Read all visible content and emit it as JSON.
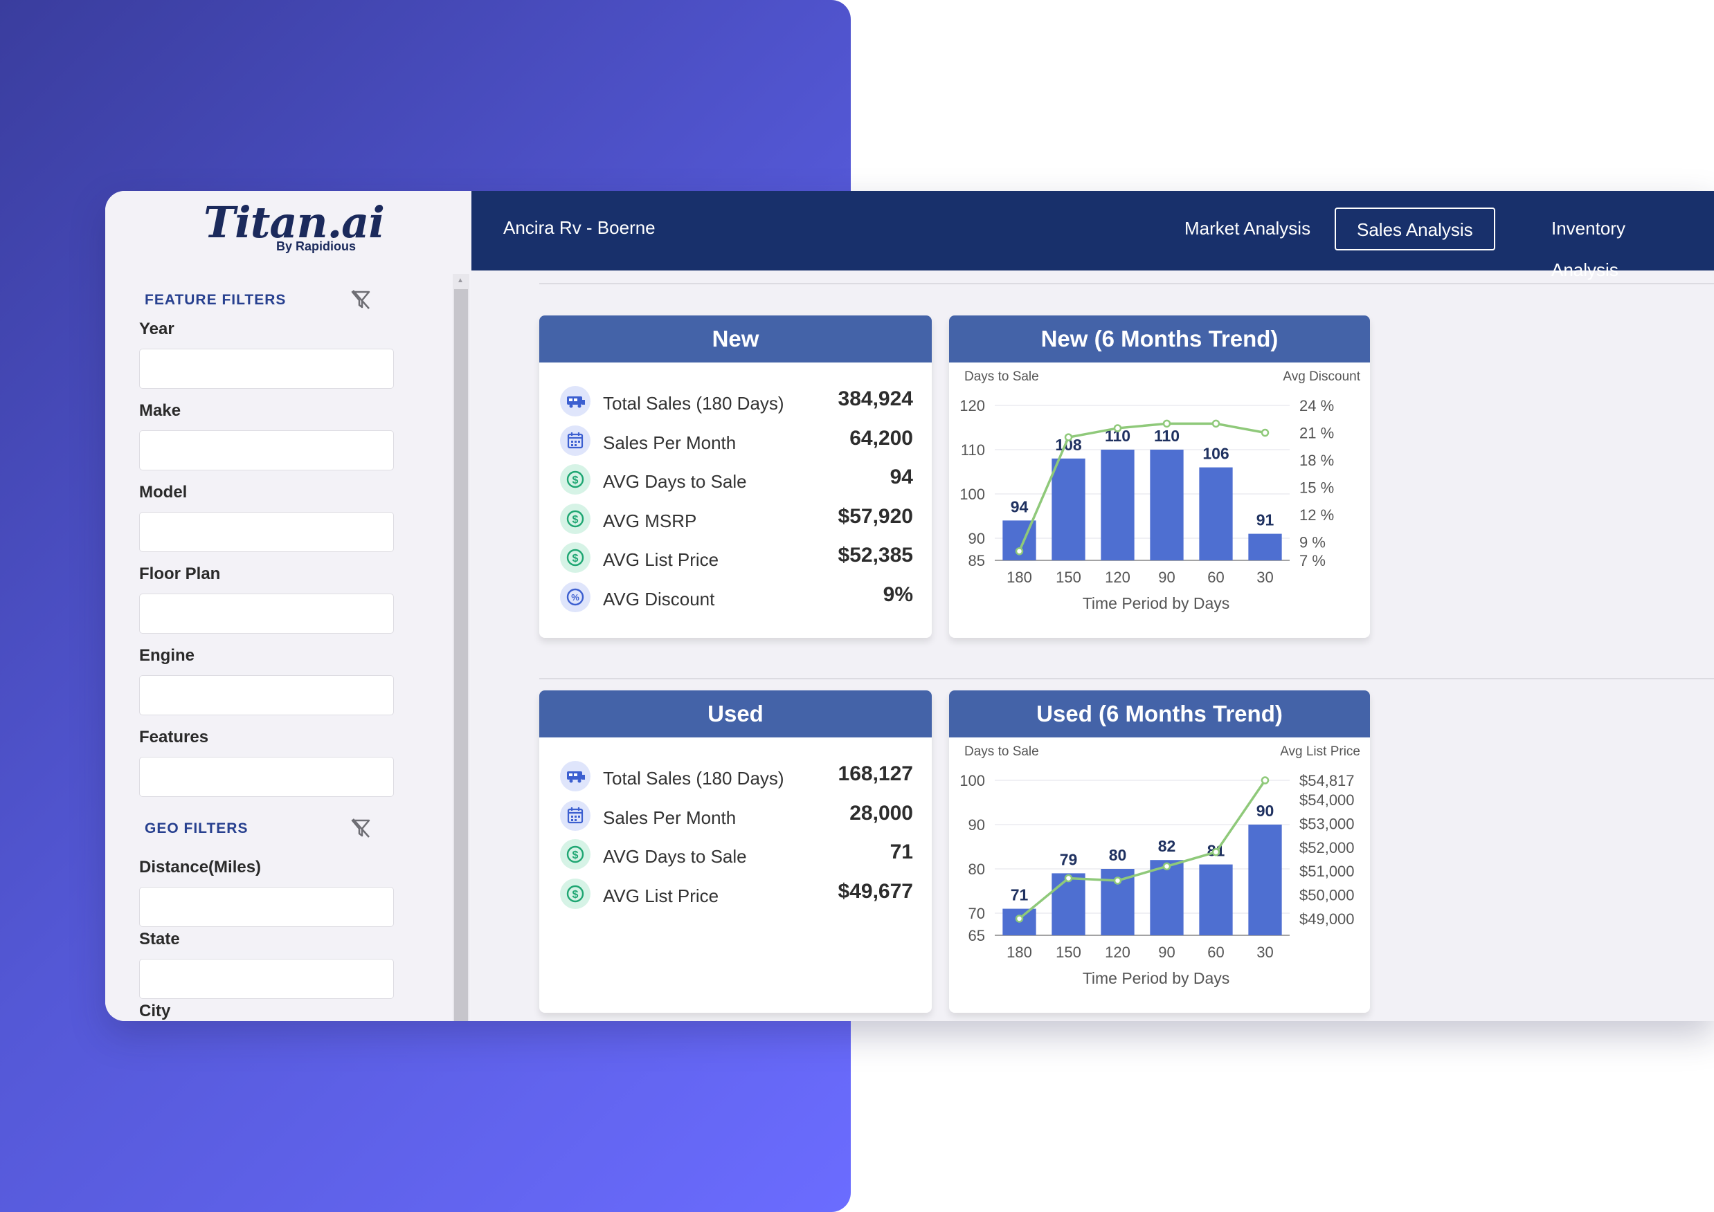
{
  "brand": {
    "logo_main": "Titan.ai",
    "logo_sub": "By Rapidious"
  },
  "sidebar": {
    "feature_filters_title": "FEATURE FILTERS",
    "geo_filters_title": "GEO FILTERS",
    "feature_fields": [
      {
        "label": "Year",
        "value": ""
      },
      {
        "label": "Make",
        "value": ""
      },
      {
        "label": "Model",
        "value": ""
      },
      {
        "label": "Floor Plan",
        "value": ""
      },
      {
        "label": "Engine",
        "value": ""
      },
      {
        "label": "Features",
        "value": ""
      }
    ],
    "geo_fields": [
      {
        "label": "Distance(Miles)",
        "value": ""
      },
      {
        "label": "State",
        "value": ""
      },
      {
        "label": "City",
        "value": ""
      }
    ]
  },
  "header": {
    "dealer": "Ancira Rv - Boerne",
    "tabs": [
      "Market Analysis",
      "Sales Analysis",
      "Inventory Analysis"
    ],
    "active_tab": "Sales Analysis"
  },
  "new_card": {
    "title": "New",
    "stats": [
      {
        "icon": "rv-icon",
        "label": "Total Sales (180 Days)",
        "value": "384,924"
      },
      {
        "icon": "calendar-icon",
        "label": "Sales Per Month",
        "value": "64,200"
      },
      {
        "icon": "dollar-icon",
        "label": "AVG Days to Sale",
        "value": "94"
      },
      {
        "icon": "dollar-icon",
        "label": "AVG MSRP",
        "value": "$57,920"
      },
      {
        "icon": "dollar-icon",
        "label": "AVG List Price",
        "value": "$52,385"
      },
      {
        "icon": "percent-icon",
        "label": "AVG Discount",
        "value": "9%"
      }
    ]
  },
  "used_card": {
    "title": "Used",
    "stats": [
      {
        "icon": "rv-icon",
        "label": "Total Sales (180 Days)",
        "value": "168,127"
      },
      {
        "icon": "calendar-icon",
        "label": "Sales Per Month",
        "value": "28,000"
      },
      {
        "icon": "dollar-icon",
        "label": "AVG Days to Sale",
        "value": "71"
      },
      {
        "icon": "dollar-icon",
        "label": "AVG List Price",
        "value": "$49,677"
      }
    ]
  },
  "chart_data": [
    {
      "type": "bar",
      "title": "New (6 Months Trend)",
      "xlabel": "Time Period by Days",
      "ylabel": "Days to Sale",
      "y2label": "Avg Discount",
      "categories": [
        "180",
        "150",
        "120",
        "90",
        "60",
        "30"
      ],
      "series": [
        {
          "name": "Days to Sale",
          "kind": "bar",
          "axis": "left",
          "values": [
            94,
            108,
            110,
            110,
            106,
            91
          ]
        },
        {
          "name": "Avg Discount",
          "kind": "line",
          "axis": "right",
          "values": [
            8,
            20.5,
            21.5,
            22,
            22,
            21
          ]
        }
      ],
      "y_ticks": [
        "120",
        "110",
        "100",
        "90",
        "85"
      ],
      "y_tick_values": [
        120,
        110,
        100,
        90,
        85
      ],
      "ylim": [
        85,
        120
      ],
      "y2_ticks": [
        "24 %",
        "21 %",
        "18 %",
        "15 %",
        "12 %",
        "9 %",
        "7 %"
      ],
      "y2_tick_values": [
        24,
        21,
        18,
        15,
        12,
        9,
        7
      ],
      "y2lim": [
        7,
        24
      ],
      "colors": {
        "bar": "#4e6fd1",
        "line": "#8fc97a"
      }
    },
    {
      "type": "bar",
      "title": "Used (6 Months Trend)",
      "xlabel": "Time Period by Days",
      "ylabel": "Days to Sale",
      "y2label": "Avg List Price",
      "categories": [
        "180",
        "150",
        "120",
        "90",
        "60",
        "30"
      ],
      "series": [
        {
          "name": "Days to Sale",
          "kind": "bar",
          "axis": "left",
          "values": [
            71,
            79,
            80,
            82,
            81,
            90
          ]
        },
        {
          "name": "Avg List Price",
          "kind": "line",
          "axis": "right",
          "values": [
            49000,
            50700,
            50600,
            51200,
            51800,
            54817
          ]
        }
      ],
      "y_ticks": [
        "100",
        "90",
        "80",
        "70",
        "65"
      ],
      "y_tick_values": [
        100,
        90,
        80,
        70,
        65
      ],
      "ylim": [
        65,
        100
      ],
      "y2_ticks": [
        "$54,817",
        "$54,000",
        "$53,000",
        "$52,000",
        "$51,000",
        "$50,000",
        "$49,000"
      ],
      "y2_tick_values": [
        54817,
        54000,
        53000,
        52000,
        51000,
        50000,
        49000
      ],
      "y2lim": [
        48300,
        54817
      ],
      "colors": {
        "bar": "#4e6fd1",
        "line": "#8fc97a"
      }
    }
  ]
}
